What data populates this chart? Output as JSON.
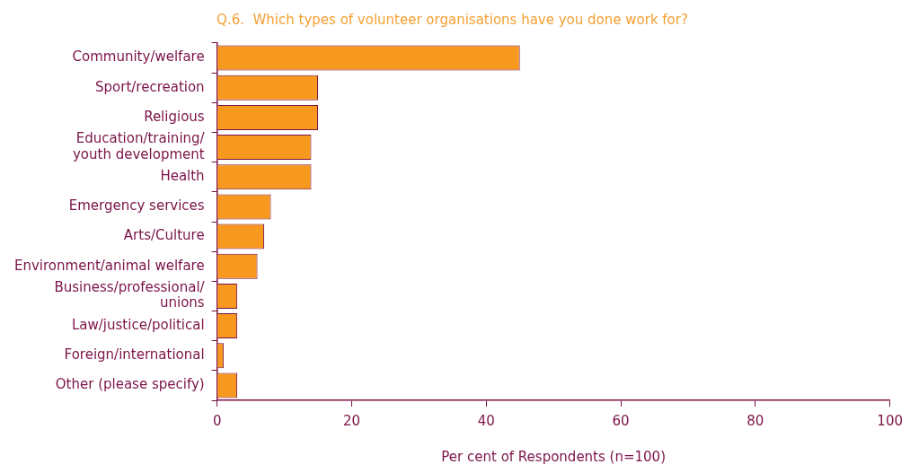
{
  "chart_data": {
    "type": "bar",
    "orientation": "horizontal",
    "title": "Q.6.  Which types of volunteer organisations have you done work for?",
    "xlabel": "Per cent of Respondents (n=100)",
    "categories": [
      "Community/welfare",
      "Sport/recreation",
      "Religious",
      "Education/training/\nyouth development",
      "Health",
      "Emergency services",
      "Arts/Culture",
      "Environment/animal welfare",
      "Business/professional/\nunions",
      "Law/justice/political",
      "Foreign/international",
      "Other (please specify)"
    ],
    "values": [
      45,
      15,
      15,
      14,
      14,
      8,
      7,
      6,
      3,
      3,
      1,
      3
    ],
    "color": "#f7981f",
    "xlim": [
      0,
      100
    ],
    "xticks": [
      0,
      20,
      40,
      60,
      80,
      100
    ],
    "grid": false,
    "legend": false
  }
}
